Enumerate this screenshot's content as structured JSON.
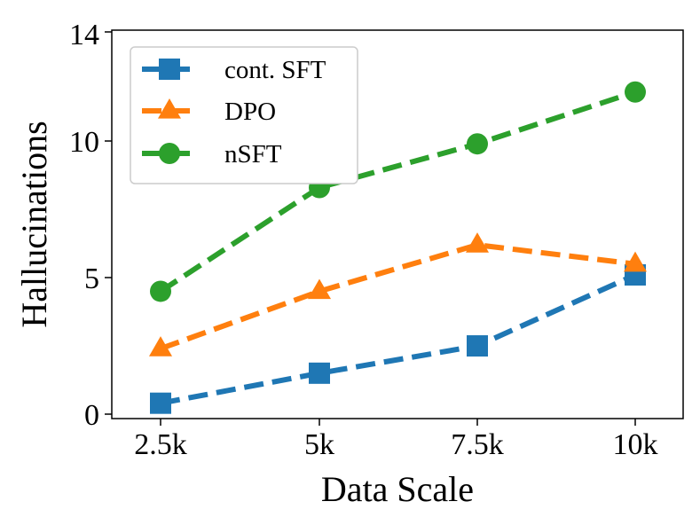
{
  "chart_data": {
    "type": "line",
    "xlabel": "Data Scale",
    "ylabel": "Hallucinations",
    "categories": [
      "2.5k",
      "5k",
      "7.5k",
      "10k"
    ],
    "yticks": [
      "0",
      "5",
      "10",
      "14"
    ],
    "ytick_values": [
      0,
      5,
      10,
      14
    ],
    "ylim": [
      0,
      14
    ],
    "grid": false,
    "legend_position": "top-left",
    "series": [
      {
        "name": "cont. SFT",
        "marker": "square",
        "color": "#1f77b4",
        "values": [
          0.4,
          1.5,
          2.5,
          5.1
        ]
      },
      {
        "name": "DPO",
        "marker": "triangle",
        "color": "#ff7f0e",
        "values": [
          2.4,
          4.5,
          6.2,
          5.5
        ]
      },
      {
        "name": "nSFT",
        "marker": "circle",
        "color": "#2ca02c",
        "values": [
          4.5,
          8.3,
          9.9,
          11.8
        ]
      }
    ]
  }
}
